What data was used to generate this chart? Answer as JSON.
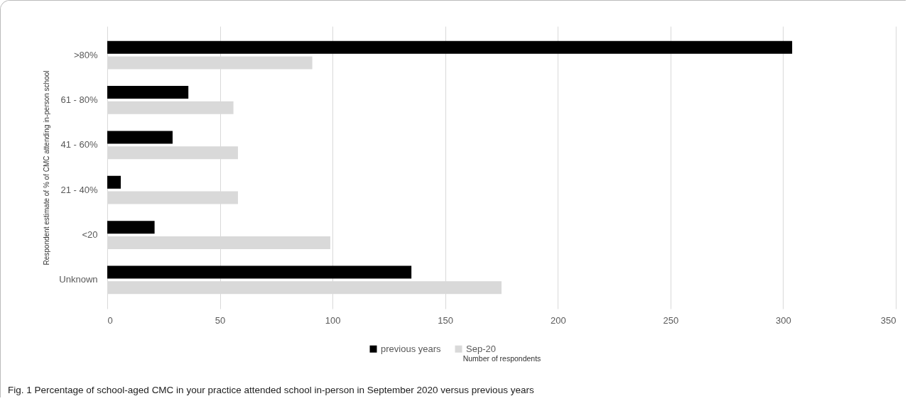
{
  "chart_data": {
    "type": "bar",
    "orientation": "horizontal",
    "categories": [
      ">80%",
      "61 - 80%",
      "41 - 60%",
      "21 - 40%",
      "<20",
      "Unknown"
    ],
    "series": [
      {
        "name": "previous years",
        "color": "#000000",
        "values": [
          304,
          36,
          29,
          6,
          21,
          135
        ]
      },
      {
        "name": "Sep-20",
        "color": "#d9d9d9",
        "values": [
          91,
          56,
          58,
          58,
          99,
          175
        ]
      }
    ],
    "xlim": [
      0,
      350
    ],
    "xticks": [
      0,
      50,
      100,
      150,
      200,
      250,
      300,
      350
    ],
    "xlabel": "Number of respondents",
    "ylabel": "Respondent estimate of % of CMC attending in-person school",
    "grid": "x",
    "legend": "bottom",
    "annotations": [
      "Fig. 1  Percentage of school-aged CMC in your practice attended school in-person in September 2020 versus previous years"
    ]
  }
}
